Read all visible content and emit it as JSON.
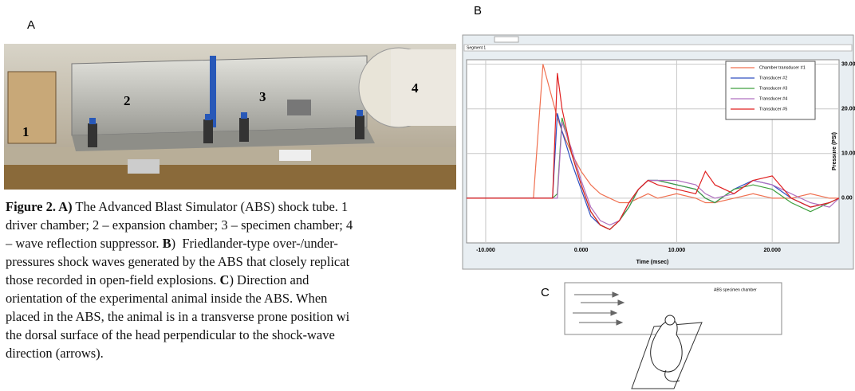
{
  "panel_labels": {
    "a": "A",
    "b": "B",
    "c": "C"
  },
  "photo": {
    "labels": [
      "1",
      "2",
      "3",
      "4"
    ]
  },
  "caption": {
    "lines": [
      [
        {
          "text": "Figure 2. A)",
          "bold": true
        },
        {
          "text": " The Advanced Blast Simulator (ABS) shock tube. 1",
          "bold": false
        }
      ],
      [
        {
          "text": "driver chamber; 2 – expansion chamber; 3 – specimen chamber; 4",
          "bold": false
        }
      ],
      [
        {
          "text": "– wave reflection suppressor. ",
          "bold": false
        },
        {
          "text": "B",
          "bold": true
        },
        {
          "text": ")  Friedlander-type over-/under-",
          "bold": false
        }
      ],
      [
        {
          "text": "pressures shock waves generated by the ABS that closely replicat",
          "bold": false
        }
      ],
      [
        {
          "text": "those recorded in open-field explosions. ",
          "bold": false
        },
        {
          "text": "C",
          "bold": true
        },
        {
          "text": ") Direction and",
          "bold": false
        }
      ],
      [
        {
          "text": "orientation of the experimental animal inside the ABS. When",
          "bold": false
        }
      ],
      [
        {
          "text": "placed in the ABS, the animal is in a transverse prone position wi",
          "bold": false
        }
      ],
      [
        {
          "text": "the dorsal surface of the head perpendicular to the shock-wave",
          "bold": false
        }
      ],
      [
        {
          "text": "direction (arrows).",
          "bold": false
        }
      ]
    ]
  },
  "chart_tab": "Segment 1",
  "chart_data": {
    "type": "line",
    "x_label": "Time (msec)",
    "y_label": "Pressure (PSI)",
    "x": [
      -12,
      -5,
      -4,
      -3.5,
      -3,
      -2.5,
      -2,
      -1,
      0,
      1,
      2,
      3,
      4,
      5,
      6,
      7,
      8,
      10,
      12,
      13,
      14,
      16,
      18,
      20,
      22,
      24,
      26,
      27
    ],
    "series": [
      {
        "name": "Chamber transducer #1",
        "color": "#f07050",
        "values": [
          0,
          0,
          30,
          26,
          22,
          18,
          15,
          10,
          6,
          3,
          1,
          0,
          -1,
          -1,
          0,
          1,
          0,
          1,
          0,
          -1,
          -1,
          0,
          1,
          0,
          0,
          1,
          0,
          0
        ]
      },
      {
        "name": "Transducer #2",
        "color": "#3050c0",
        "values": [
          0,
          0,
          0,
          0,
          0,
          19,
          15,
          8,
          2,
          -4,
          -6,
          -7,
          -5,
          -2,
          2,
          4,
          4,
          3,
          2,
          0,
          -1,
          2,
          4,
          3,
          0,
          -2,
          -1,
          0
        ]
      },
      {
        "name": "Transducer #3",
        "color": "#40a040",
        "values": [
          0,
          0,
          0,
          0,
          0,
          1,
          18,
          10,
          3,
          -3,
          -6,
          -7,
          -5,
          -2,
          2,
          4,
          4,
          3,
          2,
          0,
          -1,
          2,
          3,
          2,
          -1,
          -3,
          -1,
          0
        ]
      },
      {
        "name": "Transducer #4",
        "color": "#b070c0",
        "values": [
          0,
          0,
          0,
          0,
          0,
          0,
          17,
          11,
          4,
          -2,
          -5,
          -6,
          -5,
          -1,
          2,
          4,
          4,
          4,
          3,
          1,
          0,
          1,
          4,
          3,
          1,
          -1,
          -2,
          0
        ]
      },
      {
        "name": "Transducer #5",
        "color": "#e02020",
        "values": [
          0,
          0,
          0,
          0,
          0,
          28,
          20,
          10,
          3,
          -3,
          -6,
          -7,
          -5,
          -1,
          2,
          4,
          3,
          2,
          1,
          6,
          3,
          1,
          4,
          5,
          0,
          -2,
          -1,
          0
        ]
      }
    ],
    "xlim": [
      -12,
      27
    ],
    "ylim": [
      -10,
      31
    ],
    "xticks": [
      {
        "value": -10,
        "label": "-10.000"
      },
      {
        "value": 0,
        "label": "0.000"
      },
      {
        "value": 10,
        "label": "10.000"
      },
      {
        "value": 20,
        "label": "20.000"
      }
    ],
    "yticks": [
      {
        "value": 0,
        "label": "0.00"
      },
      {
        "value": 10,
        "label": "10.00"
      },
      {
        "value": 20,
        "label": "20.00"
      },
      {
        "value": 30,
        "label": "30.00"
      }
    ],
    "grid": true,
    "legend": "top-right"
  },
  "diagram": {
    "chamber_label": "ABS specimen chamber"
  }
}
